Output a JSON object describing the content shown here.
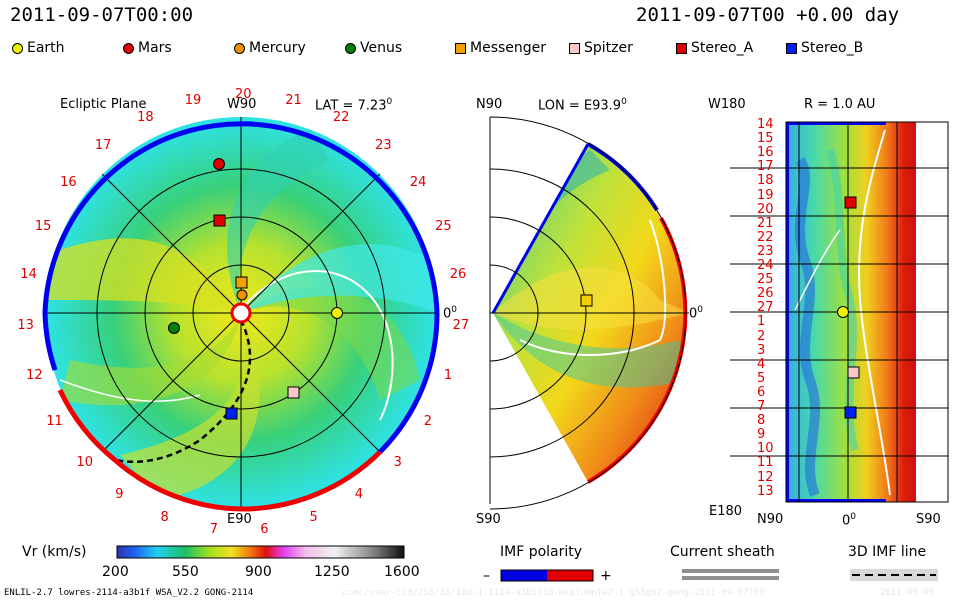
{
  "header": {
    "timestamp_left": "2011-09-07T00:00",
    "timestamp_right": "2011-09-07T00 +0.00 day"
  },
  "legend": [
    {
      "name": "Earth",
      "shape": "circle",
      "color": "#f0f000"
    },
    {
      "name": "Mars",
      "shape": "circle",
      "color": "#e00000"
    },
    {
      "name": "Mercury",
      "shape": "circle",
      "color": "#f09000"
    },
    {
      "name": "Venus",
      "shape": "circle",
      "color": "#008000"
    },
    {
      "name": "Messenger",
      "shape": "square",
      "color": "#f0a000"
    },
    {
      "name": "Spitzer",
      "shape": "square",
      "color": "#f8c8c8"
    },
    {
      "name": "Stereo_A",
      "shape": "square",
      "color": "#e00000"
    },
    {
      "name": "Stereo_B",
      "shape": "square",
      "color": "#0020f0"
    }
  ],
  "ecliptic": {
    "title": "Ecliptic Plane",
    "lat_label": "LAT = 7.23",
    "deg": "0",
    "top_label": "W90",
    "bottom_label": "E90",
    "right_label": "0",
    "sector_labels": [
      "20",
      "21",
      "22",
      "23",
      "24",
      "25",
      "26",
      "27",
      "1",
      "2",
      "3",
      "4",
      "5",
      "6",
      "7",
      "8",
      "9",
      "10",
      "11",
      "12",
      "13",
      "14",
      "15",
      "16",
      "17",
      "18",
      "19"
    ]
  },
  "meridional": {
    "top_left": "N90",
    "lon_label": "LON = E93.9",
    "deg": "0",
    "bottom_left": "S90",
    "right_label": "0"
  },
  "synoptic": {
    "top_left": "W180",
    "r_label": "R = 1.0 AU",
    "bottom_left": "E180",
    "x_labels": [
      "N90",
      "0",
      "S90"
    ],
    "rows": [
      "14",
      "15",
      "16",
      "17",
      "18",
      "19",
      "20",
      "21",
      "22",
      "23",
      "24",
      "25",
      "26",
      "27",
      "1",
      "2",
      "3",
      "4",
      "5",
      "6",
      "7",
      "8",
      "9",
      "10",
      "11",
      "12",
      "13"
    ]
  },
  "colorbar": {
    "label": "Vr (km/s)",
    "ticks": [
      "200",
      "550",
      "900",
      "1250",
      "1600"
    ]
  },
  "imf": {
    "title": "IMF polarity",
    "minus": "–",
    "plus": "+",
    "neg_color": "#0000e0",
    "pos_color": "#e00000"
  },
  "sheath": {
    "title": "Current sheath"
  },
  "imf3d": {
    "title": "3D IMF line"
  },
  "footer": {
    "model": "ENLIL-2.7 lowres-2114-a3b1f WSA_V2.2 GONG-2114",
    "run_id": "ccmc/vsmr-cid/258/30/10d-1.1114-a3b1f16-mcplumn1a2-1.g53g62-gong-2011-09-07T00",
    "date": "2011-09-06"
  }
}
